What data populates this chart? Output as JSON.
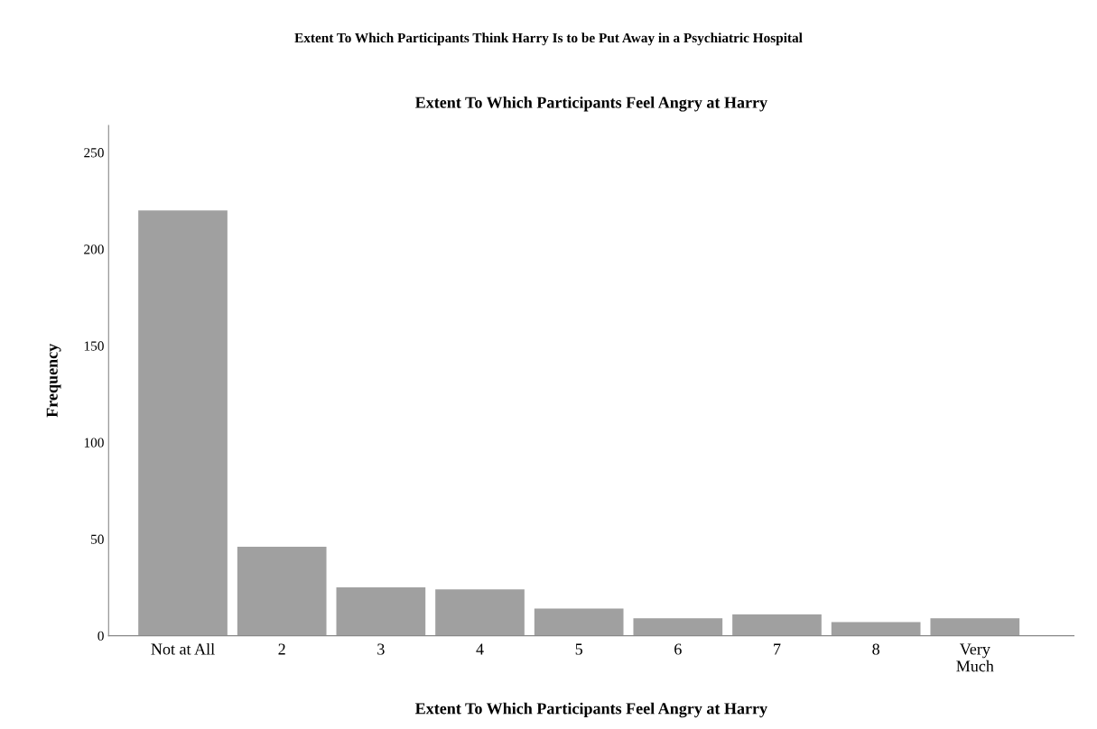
{
  "chart_data": {
    "type": "bar",
    "title": "Extent To Which Participants Think Harry Is to be Put Away in a Psychiatric Hospital",
    "subtitle": "Extent To Which Participants Feel Angry at Harry",
    "xlabel": "Extent To Which Participants Feel Angry at Harry",
    "ylabel": "Frequency",
    "categories": [
      "Not at All",
      "2",
      "3",
      "4",
      "5",
      "6",
      "7",
      "8",
      "Very\nMuch"
    ],
    "values": [
      220,
      46,
      25,
      24,
      14,
      9,
      11,
      7,
      9
    ],
    "color": "#a0a0a0",
    "ylim": [
      0,
      264
    ],
    "yticks": [
      0,
      50,
      100,
      150,
      200,
      250
    ],
    "grid": false
  }
}
